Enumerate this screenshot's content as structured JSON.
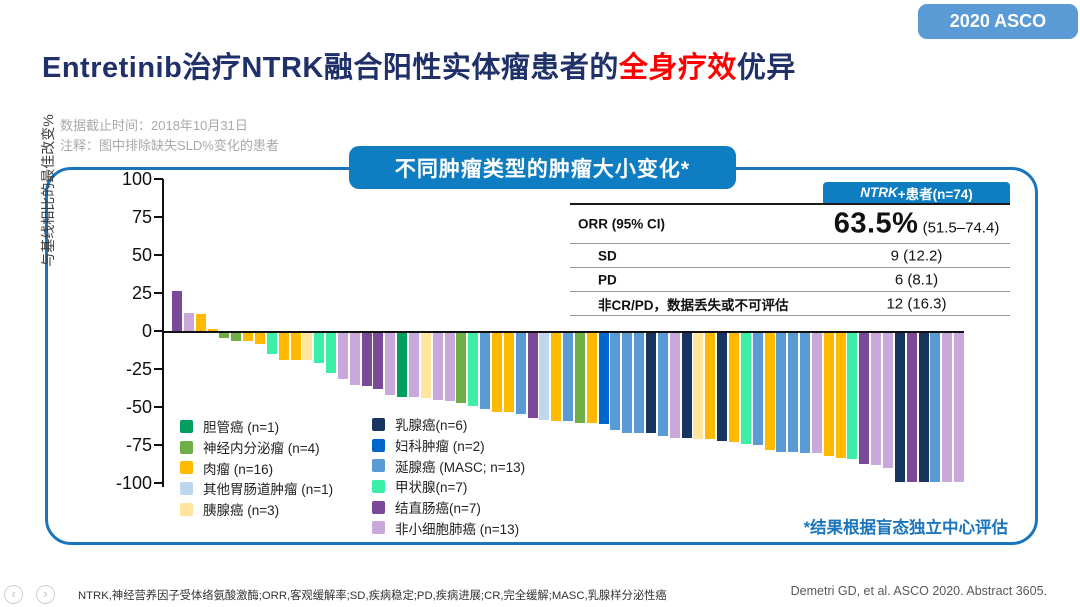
{
  "badge": {
    "label": "2020 ASCO"
  },
  "title": {
    "part1": "Entretinib治疗NTRK融合阳性实体瘤患者的",
    "highlight": "全身疗效",
    "part2": "优异"
  },
  "notes": {
    "line1": "数据截止时间：2018年10月31日",
    "line2": "注释：图中排除缺失SLD%变化的患者"
  },
  "chart_title": "不同肿瘤类型的肿瘤大小变化*",
  "stat_table": {
    "header": {
      "italic": "NTRK",
      "rest": "+患者(n=74)"
    },
    "orr": {
      "label": "ORR (95% CI)",
      "big": "63.5%",
      "ci": " (51.5–74.4)"
    },
    "sd": {
      "label": "SD",
      "value": "9 (12.2)"
    },
    "pd": {
      "label": "PD",
      "value": "6  (8.1)"
    },
    "ne": {
      "label": "非CR/PD，数据丢失或不可评估",
      "value": "12 (16.3)"
    }
  },
  "chart_data": {
    "type": "bar",
    "title": "不同肿瘤类型的肿瘤大小变化*",
    "xlabel": "",
    "ylabel": "与基线相比的最佳改变%",
    "ylim": [
      -100,
      100
    ],
    "yticks": [
      100,
      75,
      50,
      25,
      0,
      -25,
      -50,
      -75,
      -100
    ],
    "grid": false,
    "legend_position": "bottom-left",
    "colors": {
      "cholangio": "#009E60",
      "neuroendocrine": "#6FAE46",
      "sarcoma": "#FFB900",
      "gi": "#BDD7EE",
      "pancreatic": "#FFE59E",
      "breast": "#17355F",
      "gyn": "#0066CC",
      "masc": "#5B9BD5",
      "thyroid": "#3DEEA7",
      "colorectal": "#7A4A99",
      "nsclc": "#C9A8DC"
    },
    "bars": [
      {
        "v": 26,
        "c": "colorectal"
      },
      {
        "v": 12,
        "c": "nsclc"
      },
      {
        "v": 11,
        "c": "sarcoma"
      },
      {
        "v": 1,
        "c": "sarcoma"
      },
      {
        "v": -3,
        "c": "neuroendocrine"
      },
      {
        "v": -5,
        "c": "neuroendocrine"
      },
      {
        "v": -5,
        "c": "sarcoma"
      },
      {
        "v": -7,
        "c": "sarcoma"
      },
      {
        "v": -14,
        "c": "thyroid"
      },
      {
        "v": -18,
        "c": "sarcoma"
      },
      {
        "v": -18,
        "c": "sarcoma"
      },
      {
        "v": -18,
        "c": "pancreatic"
      },
      {
        "v": -20,
        "c": "thyroid"
      },
      {
        "v": -26,
        "c": "thyroid"
      },
      {
        "v": -30,
        "c": "nsclc"
      },
      {
        "v": -34,
        "c": "nsclc"
      },
      {
        "v": -35,
        "c": "colorectal"
      },
      {
        "v": -37,
        "c": "colorectal"
      },
      {
        "v": -41,
        "c": "nsclc"
      },
      {
        "v": -42,
        "c": "cholangio"
      },
      {
        "v": -42,
        "c": "nsclc"
      },
      {
        "v": -43,
        "c": "pancreatic"
      },
      {
        "v": -44,
        "c": "nsclc"
      },
      {
        "v": -45,
        "c": "nsclc"
      },
      {
        "v": -46,
        "c": "neuroendocrine"
      },
      {
        "v": -48,
        "c": "thyroid"
      },
      {
        "v": -50,
        "c": "masc"
      },
      {
        "v": -52,
        "c": "sarcoma"
      },
      {
        "v": -52,
        "c": "sarcoma"
      },
      {
        "v": -53,
        "c": "masc"
      },
      {
        "v": -56,
        "c": "colorectal"
      },
      {
        "v": -57,
        "c": "gi"
      },
      {
        "v": -58,
        "c": "sarcoma"
      },
      {
        "v": -58,
        "c": "masc"
      },
      {
        "v": -59,
        "c": "neuroendocrine"
      },
      {
        "v": -59,
        "c": "sarcoma"
      },
      {
        "v": -60,
        "c": "gyn"
      },
      {
        "v": -64,
        "c": "masc"
      },
      {
        "v": -66,
        "c": "masc"
      },
      {
        "v": -66,
        "c": "masc"
      },
      {
        "v": -66,
        "c": "breast"
      },
      {
        "v": -68,
        "c": "masc"
      },
      {
        "v": -69,
        "c": "nsclc"
      },
      {
        "v": -69,
        "c": "breast"
      },
      {
        "v": -70,
        "c": "pancreatic"
      },
      {
        "v": -70,
        "c": "sarcoma"
      },
      {
        "v": -71,
        "c": "breast"
      },
      {
        "v": -72,
        "c": "sarcoma"
      },
      {
        "v": -73,
        "c": "thyroid"
      },
      {
        "v": -74,
        "c": "masc"
      },
      {
        "v": -77,
        "c": "sarcoma"
      },
      {
        "v": -78,
        "c": "masc"
      },
      {
        "v": -78,
        "c": "masc"
      },
      {
        "v": -79,
        "c": "masc"
      },
      {
        "v": -79,
        "c": "nsclc"
      },
      {
        "v": -81,
        "c": "sarcoma"
      },
      {
        "v": -82,
        "c": "sarcoma"
      },
      {
        "v": -83,
        "c": "thyroid"
      },
      {
        "v": -86,
        "c": "colorectal"
      },
      {
        "v": -87,
        "c": "nsclc"
      },
      {
        "v": -89,
        "c": "nsclc"
      },
      {
        "v": -98,
        "c": "breast"
      },
      {
        "v": -98,
        "c": "colorectal"
      },
      {
        "v": -98,
        "c": "breast"
      },
      {
        "v": -98,
        "c": "masc"
      },
      {
        "v": -98,
        "c": "nsclc"
      },
      {
        "v": -98,
        "c": "nsclc"
      }
    ]
  },
  "legend": {
    "col1": [
      {
        "label": "胆管癌 (n=1)",
        "color": "cholangio"
      },
      {
        "label": "神经内分泌瘤 (n=4)",
        "color": "neuroendocrine"
      },
      {
        "label": "肉瘤 (n=16)",
        "color": "sarcoma"
      },
      {
        "label": "其他胃肠道肿瘤 (n=1)",
        "color": "gi"
      },
      {
        "label": "胰腺癌 (n=3)",
        "color": "pancreatic"
      }
    ],
    "col2": [
      {
        "label": "乳腺癌(n=6)",
        "color": "breast"
      },
      {
        "label": "妇科肿瘤 (n=2)",
        "color": "gyn"
      },
      {
        "label": "涎腺癌 (MASC; n=13)",
        "color": "masc"
      },
      {
        "label": "甲状腺(n=7)",
        "color": "thyroid"
      },
      {
        "label": "结直肠癌(n=7)",
        "color": "colorectal"
      },
      {
        "label": "非小细胞肺癌 (n=13)",
        "color": "nsclc"
      }
    ]
  },
  "blind_note": "*结果根据盲态独立中心评估",
  "footer": {
    "abbreviations": "NTRK,神经营养因子受体络氨酸激酶;ORR,客观缓解率;SD,疾病稳定;PD,疾病进展;CR,完全缓解;MASC,乳腺样分泌性癌",
    "citation": "Demetri GD, et al. ASCO 2020. Abstract 3605.",
    "nav_prev": "‹",
    "nav_next": "›"
  },
  "ui_colors": {
    "accent_blue": "#0F7DC2",
    "border_blue": "#1B75BC",
    "badge_blue": "#5B9BD5",
    "title_navy": "#1F3168",
    "highlight_red": "#FF0000",
    "note_gray": "#A9A9A9"
  }
}
